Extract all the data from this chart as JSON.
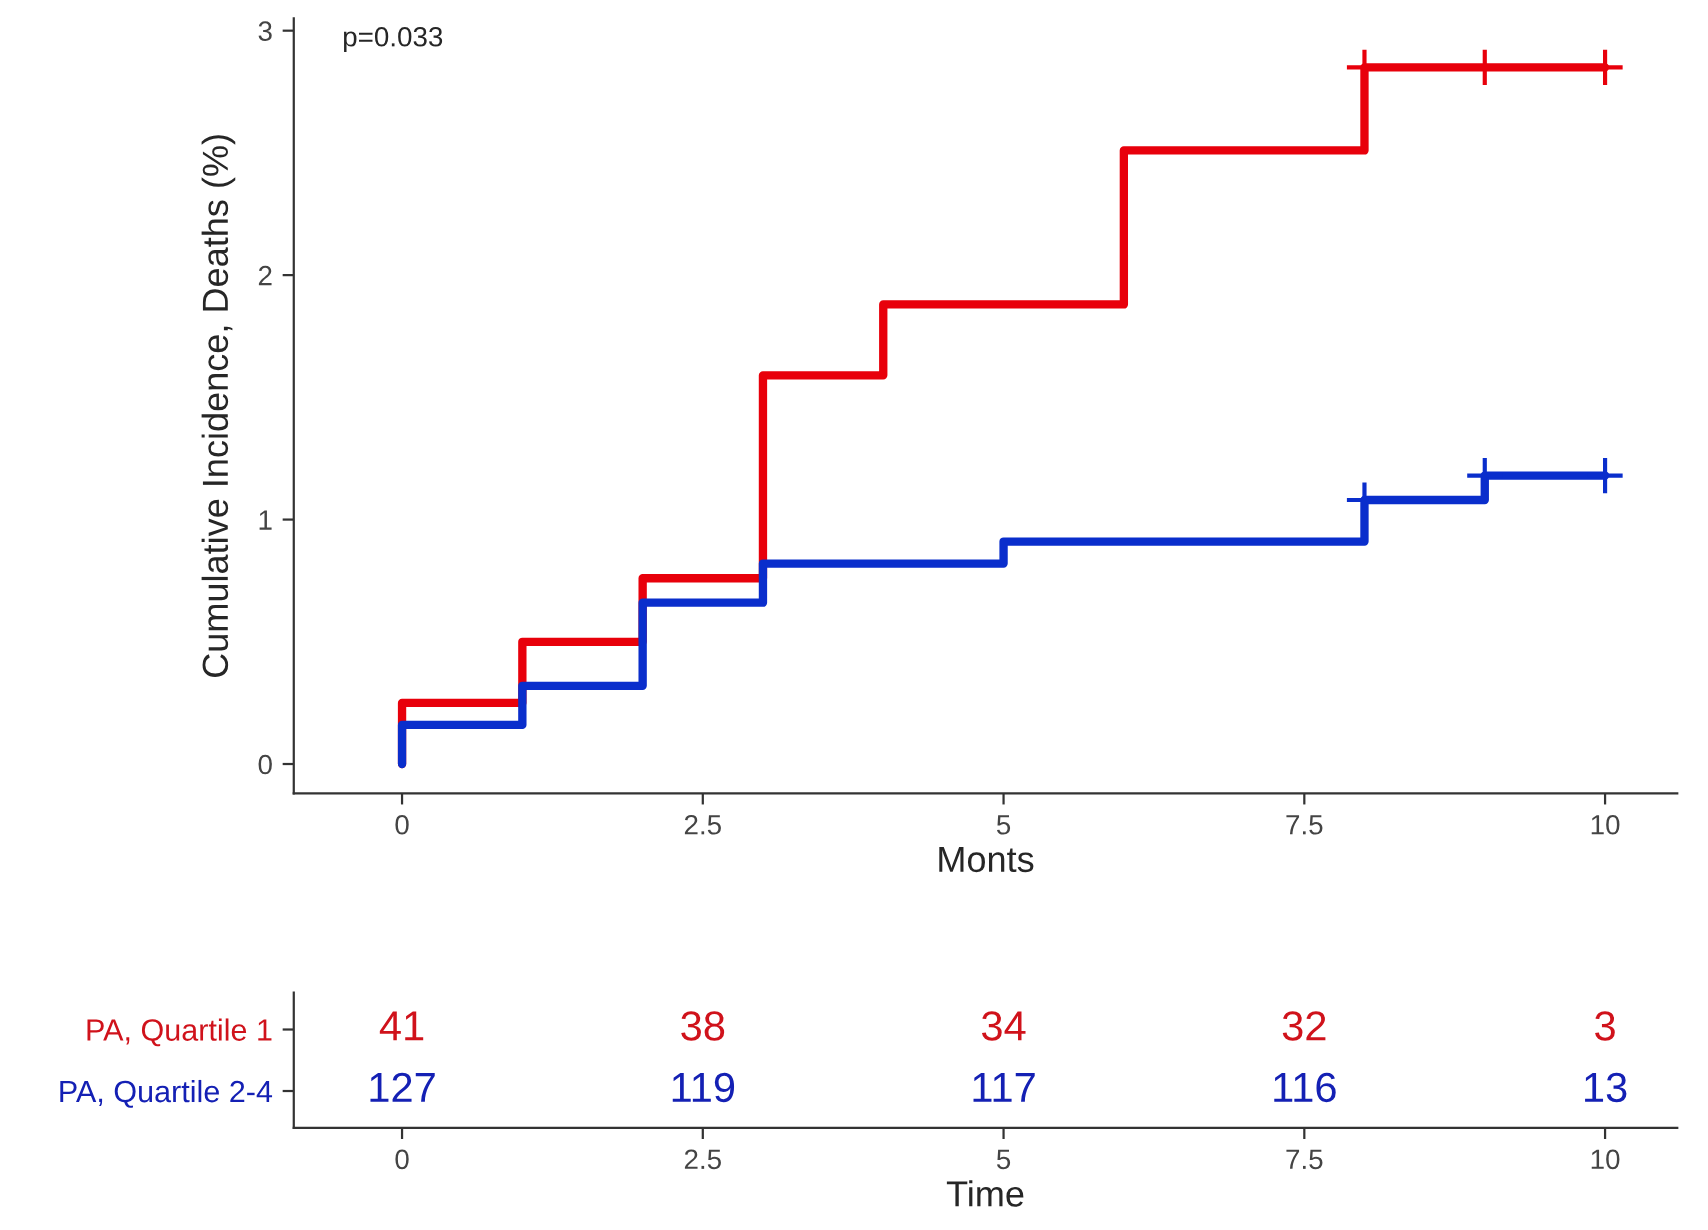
{
  "chart_data": [
    {
      "type": "step",
      "xlabel": "Monts",
      "ylabel": "Cumulative Incidence, Deaths (%)",
      "annotations": [
        "p=0.033"
      ],
      "xlim": [
        -0.9,
        10.6
      ],
      "ylim": [
        -0.12,
        3.05
      ],
      "xticks": [
        0,
        2.5,
        5,
        7.5,
        10
      ],
      "yticks": [
        0,
        1,
        2,
        3
      ],
      "grid": false,
      "series": [
        {
          "type": "step",
          "color": "#e8000b",
          "x": [
            0,
            0,
            1,
            2,
            3,
            4,
            6,
            8,
            10
          ],
          "values": [
            0,
            0.25,
            0.5,
            0.76,
            1.59,
            1.88,
            2.51,
            2.85,
            2.85
          ]
        },
        {
          "type": "step",
          "color": "#0a2ecc",
          "x": [
            0,
            0,
            1,
            2,
            3,
            5,
            8,
            9,
            10
          ],
          "values": [
            0,
            0.16,
            0.32,
            0.66,
            0.82,
            0.91,
            1.08,
            1.18,
            1.18
          ]
        },
        {
          "type": "scatter",
          "marker": "cross",
          "color": "#e8000b",
          "x": [
            8,
            9,
            10
          ],
          "values": [
            2.85,
            2.85,
            2.85
          ]
        },
        {
          "type": "scatter",
          "marker": "cross",
          "color": "#0a2ecc",
          "x": [
            8,
            9,
            10
          ],
          "values": [
            1.08,
            1.18,
            1.18
          ]
        }
      ]
    },
    {
      "type": "heatmap",
      "xlabel": "Time",
      "data_labels": true,
      "categories": [
        "0",
        "2.5",
        "5",
        "7.5",
        "10"
      ],
      "y_categories": [
        "PA, Quartile 1",
        "PA, Quartile 2-4"
      ],
      "colors": [
        "#d0121b",
        "#1420b4"
      ],
      "cells": [
        [
          41,
          38,
          34,
          32,
          3
        ],
        [
          127,
          119,
          117,
          116,
          13
        ]
      ]
    }
  ]
}
